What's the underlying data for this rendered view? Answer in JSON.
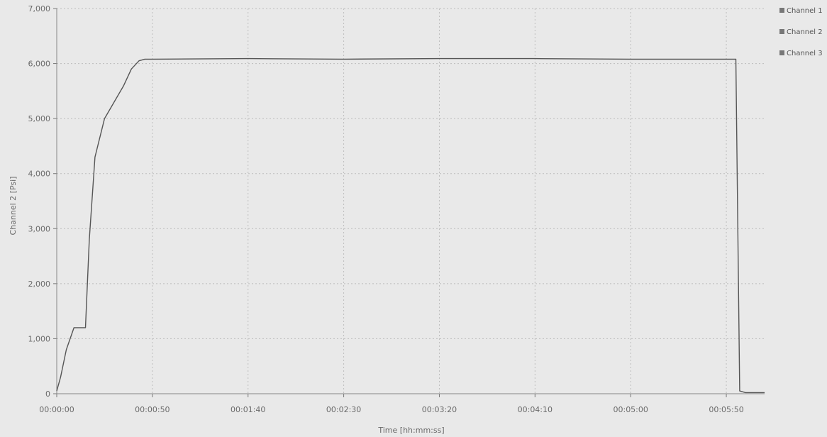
{
  "chart_data": {
    "type": "line",
    "title": "",
    "xlabel": "Time [hh:mm:ss]",
    "ylabel": "Channel 2 [Psi]",
    "x_unit": "hh:mm:ss",
    "xlim": [
      "00:00:00",
      "00:06:10"
    ],
    "ylim": [
      0,
      7000
    ],
    "x_tick_labels": [
      "00:00:00",
      "00:00:50",
      "00:01:40",
      "00:02:30",
      "00:03:20",
      "00:04:10",
      "00:05:00",
      "00:05:50"
    ],
    "y_tick_labels": [
      "0",
      "1,000",
      "2,000",
      "3,000",
      "4,000",
      "5,000",
      "6,000",
      "7,000"
    ],
    "y_ticks": [
      0,
      1000,
      2000,
      3000,
      4000,
      5000,
      6000,
      7000
    ],
    "grid": true,
    "legend_position": "top-right",
    "legend": [
      "Channel 1",
      "Channel 2",
      "Channel 3"
    ],
    "series": [
      {
        "name": "Channel 2",
        "color": "#555555",
        "x": [
          "00:00:00",
          "00:00:02",
          "00:00:05",
          "00:00:09",
          "00:00:12",
          "00:00:15",
          "00:00:17",
          "00:00:20",
          "00:00:25",
          "00:00:30",
          "00:00:35",
          "00:00:39",
          "00:00:43",
          "00:00:46",
          "00:00:50",
          "00:01:40",
          "00:02:30",
          "00:03:20",
          "00:04:10",
          "00:05:00",
          "00:05:50",
          "00:05:55",
          "00:05:57",
          "00:06:00",
          "00:06:10"
        ],
        "y": [
          50,
          300,
          800,
          1200,
          1200,
          1200,
          2800,
          4300,
          5000,
          5300,
          5600,
          5900,
          6050,
          6080,
          6080,
          6090,
          6080,
          6090,
          6090,
          6080,
          6080,
          6080,
          50,
          20,
          20
        ]
      }
    ]
  }
}
